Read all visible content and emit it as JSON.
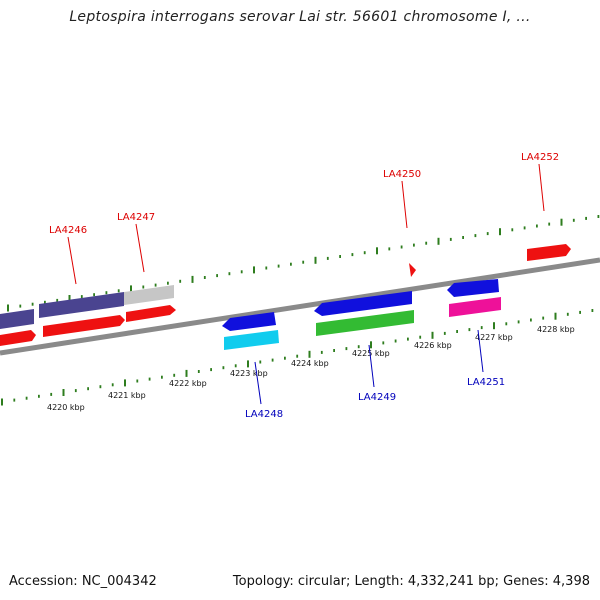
{
  "header": {
    "title": "Leptospira interrogans serovar Lai str. 56601 chromosome I, ..."
  },
  "footer": {
    "accession": "Accession: NC_004342",
    "summary": "Topology: circular; Length: 4,332,241 bp; Genes: 4,398"
  },
  "colors": {
    "backbone": "#8a8a8a",
    "tick": "#2e7d1e",
    "forward_gene_label": "#dd0000",
    "reverse_gene_label": "#0000bb",
    "red": "#ee1111",
    "purple": "#4a4490",
    "grey": "#c6c6c6",
    "blue": "#1010dd",
    "cyan": "#11ccee",
    "green": "#33bb33",
    "magenta": "#ee1199"
  },
  "map": {
    "tick_labels": [
      "4220 kbp",
      "4221 kbp",
      "4222 kbp",
      "4223 kbp",
      "4224 kbp",
      "4225 kbp",
      "4226 kbp",
      "4227 kbp",
      "4228 kbp"
    ],
    "gene_labels": [
      {
        "text": "LA4246",
        "strand": "forward"
      },
      {
        "text": "LA4247",
        "strand": "forward"
      },
      {
        "text": "LA4250",
        "strand": "forward"
      },
      {
        "text": "LA4252",
        "strand": "forward"
      },
      {
        "text": "LA4248",
        "strand": "reverse"
      },
      {
        "text": "LA4249",
        "strand": "reverse"
      },
      {
        "text": "LA4251",
        "strand": "reverse"
      }
    ]
  }
}
